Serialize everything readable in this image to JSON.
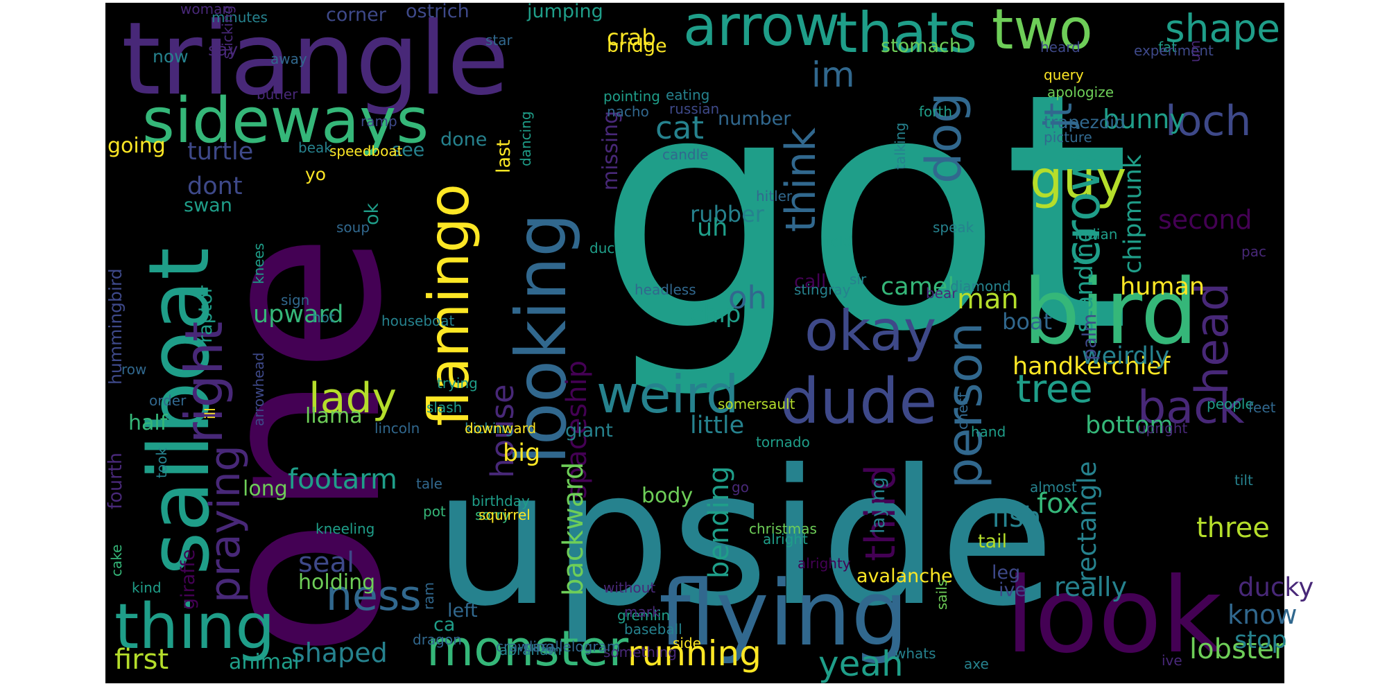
{
  "palette": [
    "#440154",
    "#482878",
    "#3e4989",
    "#31688e",
    "#26828e",
    "#1f9e89",
    "#35b779",
    "#6ece58",
    "#b5de2b",
    "#fde725"
  ],
  "words": [
    {
      "t": "got",
      "c": 5
    },
    {
      "t": "one",
      "c": 0
    },
    {
      "t": "upside",
      "c": 4
    },
    {
      "t": "triangle",
      "c": 1
    },
    {
      "t": "sailboat",
      "c": 5
    },
    {
      "t": "looking",
      "c": 3
    },
    {
      "t": "look",
      "c": 0
    },
    {
      "t": "bird",
      "c": 6
    },
    {
      "t": "flying",
      "c": 3
    },
    {
      "t": "dude",
      "c": 2
    },
    {
      "t": "sideways",
      "c": 6
    },
    {
      "t": "flamingo",
      "c": 9
    },
    {
      "t": "arrow",
      "c": 5
    },
    {
      "t": "thats",
      "c": 5
    },
    {
      "t": "two",
      "c": 7
    },
    {
      "t": "thing",
      "c": 5
    },
    {
      "t": "monster",
      "c": 6
    },
    {
      "t": "right",
      "c": 1
    },
    {
      "t": "okay",
      "c": 2
    },
    {
      "t": "weird",
      "c": 4
    },
    {
      "t": "guy",
      "c": 8
    },
    {
      "t": "ness",
      "c": 3
    },
    {
      "t": "lady",
      "c": 8
    },
    {
      "t": "praying",
      "c": 1
    },
    {
      "t": "person",
      "c": 3
    },
    {
      "t": "head",
      "c": 1
    },
    {
      "t": "shape",
      "c": 5
    },
    {
      "t": "crow",
      "c": 5
    },
    {
      "t": "loch",
      "c": 2
    },
    {
      "t": "dog",
      "c": 3
    },
    {
      "t": "back",
      "c": 1
    },
    {
      "t": "think",
      "c": 3
    },
    {
      "t": "third",
      "c": 0
    },
    {
      "t": "tree",
      "c": 5
    },
    {
      "t": "jt",
      "c": 3
    },
    {
      "t": "im",
      "c": 3
    },
    {
      "t": "running",
      "c": 9
    },
    {
      "t": "yeah",
      "c": 5
    },
    {
      "t": "footarm",
      "c": 5
    },
    {
      "t": "fish",
      "c": 4
    },
    {
      "t": "handkerchief",
      "c": 9
    },
    {
      "t": "three",
      "c": 8
    },
    {
      "t": "fox",
      "c": 6
    },
    {
      "t": "first",
      "c": 8
    },
    {
      "t": "bottom",
      "c": 6
    },
    {
      "t": "shaped",
      "c": 4
    },
    {
      "t": "seal",
      "c": 2
    },
    {
      "t": "house",
      "c": 1
    },
    {
      "t": "cat",
      "c": 4
    },
    {
      "t": "oh",
      "c": 3
    },
    {
      "t": "camel",
      "c": 6
    },
    {
      "t": "man",
      "c": 8
    },
    {
      "t": "human",
      "c": 9
    },
    {
      "t": "lobster",
      "c": 7
    },
    {
      "t": "ducky",
      "c": 1
    },
    {
      "t": "really",
      "c": 4
    },
    {
      "t": "bunny",
      "c": 5
    },
    {
      "t": "second",
      "c": 0
    },
    {
      "t": "chipmunk",
      "c": 5
    },
    {
      "t": "standing",
      "c": 5
    },
    {
      "t": "rectangle",
      "c": 4
    },
    {
      "t": "spaceship",
      "c": 0
    },
    {
      "t": "backward",
      "c": 7
    },
    {
      "t": "bending",
      "c": 5
    },
    {
      "t": "know",
      "c": 3
    },
    {
      "t": "stop",
      "c": 4
    },
    {
      "t": "upward",
      "c": 6
    },
    {
      "t": "dont",
      "c": 2
    },
    {
      "t": "turtle",
      "c": 2
    },
    {
      "t": "going",
      "c": 9
    },
    {
      "t": "missing",
      "c": 1
    },
    {
      "t": "rubber",
      "c": 4
    },
    {
      "t": "uh",
      "c": 5
    },
    {
      "t": "chip",
      "c": 5
    },
    {
      "t": "boat",
      "c": 3
    },
    {
      "t": "weirdly",
      "c": 4
    },
    {
      "t": "little",
      "c": 4
    },
    {
      "t": "big",
      "c": 9
    },
    {
      "t": "body",
      "c": 7
    },
    {
      "t": "avalanche",
      "c": 9
    },
    {
      "t": "llama",
      "c": 7
    },
    {
      "t": "holding",
      "c": 7
    },
    {
      "t": "animal",
      "c": 5
    },
    {
      "t": "long",
      "c": 7
    },
    {
      "t": "ok",
      "c": 5
    },
    {
      "t": "swan",
      "c": 5
    },
    {
      "t": "crab",
      "c": 9
    },
    {
      "t": "number",
      "c": 3
    },
    {
      "t": "corner",
      "c": 2
    },
    {
      "t": "jumping",
      "c": 5
    },
    {
      "t": "ostrich",
      "c": 2
    },
    {
      "t": "bridge",
      "c": 9
    },
    {
      "t": "stomach",
      "c": 7
    },
    {
      "t": "see",
      "c": 4
    },
    {
      "t": "done",
      "c": 4
    },
    {
      "t": "last",
      "c": 9
    },
    {
      "t": "call",
      "c": 0
    },
    {
      "t": "palm",
      "c": 2
    },
    {
      "t": "laying",
      "c": 4
    },
    {
      "t": "tail",
      "c": 8
    },
    {
      "t": "leg",
      "c": 2
    },
    {
      "t": "ive",
      "c": 2
    },
    {
      "t": "giant",
      "c": 4
    },
    {
      "t": "half",
      "c": 6
    },
    {
      "t": "giraffe",
      "c": 0
    },
    {
      "t": "fourth",
      "c": 1
    },
    {
      "t": "raptor",
      "c": 5
    },
    {
      "t": "hummingbird",
      "c": 2
    },
    {
      "t": "left",
      "c": 3
    },
    {
      "t": "ca",
      "c": 5
    },
    {
      "t": "trapezoid",
      "c": 3
    },
    {
      "t": "say",
      "c": 1
    },
    {
      "t": "now",
      "c": 4
    },
    {
      "t": "yo",
      "c": 9
    },
    {
      "t": "woman",
      "c": 1
    },
    {
      "t": "minutes",
      "c": 4
    },
    {
      "t": "sticking",
      "c": 1
    },
    {
      "t": "star",
      "c": 3
    },
    {
      "t": "away",
      "c": 3
    },
    {
      "t": "butler",
      "c": 1
    },
    {
      "t": "eating",
      "c": 4
    },
    {
      "t": "russian",
      "c": 2
    },
    {
      "t": "candle",
      "c": 3
    },
    {
      "t": "pointing",
      "c": 5
    },
    {
      "t": "nacho",
      "c": 3
    },
    {
      "t": "fat",
      "c": 5
    },
    {
      "t": "heard",
      "c": 2
    },
    {
      "t": "query",
      "c": 9
    },
    {
      "t": "experiment",
      "c": 2
    },
    {
      "t": "apologize",
      "c": 7
    },
    {
      "t": "picture",
      "c": 3
    },
    {
      "t": "um",
      "c": 1
    },
    {
      "t": "forth",
      "c": 5
    },
    {
      "t": "talking",
      "c": 4
    },
    {
      "t": "speak",
      "c": 4
    },
    {
      "t": "field",
      "c": 5
    },
    {
      "t": "hitler",
      "c": 3
    },
    {
      "t": "duck",
      "c": 5
    },
    {
      "t": "sir",
      "c": 4
    },
    {
      "t": "stingray",
      "c": 4
    },
    {
      "t": "bear",
      "c": 1
    },
    {
      "t": "diamond",
      "c": 4
    },
    {
      "t": "headless",
      "c": 3
    },
    {
      "t": "indian",
      "c": 5
    },
    {
      "t": "pac",
      "c": 1
    },
    {
      "t": "speedboat",
      "c": 9
    },
    {
      "t": "beak",
      "c": 4
    },
    {
      "t": "ramp",
      "c": 2
    },
    {
      "t": "soup",
      "c": 3
    },
    {
      "t": "dancing",
      "c": 5
    },
    {
      "t": "knees",
      "c": 5
    },
    {
      "t": "sign",
      "c": 3
    },
    {
      "t": "houseboat",
      "c": 4
    },
    {
      "t": "hot",
      "c": 4
    },
    {
      "t": "row",
      "c": 3
    },
    {
      "t": "lincoln",
      "c": 3
    },
    {
      "t": "slash",
      "c": 5
    },
    {
      "t": "order",
      "c": 3
    },
    {
      "t": "took",
      "c": 4
    },
    {
      "t": "trying",
      "c": 5
    },
    {
      "t": "kicking",
      "c": 4
    },
    {
      "t": "downward",
      "c": 9
    },
    {
      "t": "somersault",
      "c": 8
    },
    {
      "t": "tornado",
      "c": 5
    },
    {
      "t": "go",
      "c": 1
    },
    {
      "t": "upright",
      "c": 1
    },
    {
      "t": "hand",
      "c": 5
    },
    {
      "t": "people",
      "c": 5
    },
    {
      "t": "feet",
      "c": 3
    },
    {
      "t": "chest",
      "c": 3
    },
    {
      "t": "tilt",
      "c": 4
    },
    {
      "t": "almost",
      "c": 4
    },
    {
      "t": "christmas",
      "c": 7
    },
    {
      "t": "alright",
      "c": 5
    },
    {
      "t": "birthday",
      "c": 5
    },
    {
      "t": "sorry",
      "c": 6
    },
    {
      "t": "squirrel",
      "c": 9
    },
    {
      "t": "kneeling",
      "c": 5
    },
    {
      "t": "ill",
      "c": 9
    },
    {
      "t": "arrowhead",
      "c": 2
    },
    {
      "t": "cake",
      "c": 6
    },
    {
      "t": "kind",
      "c": 5
    },
    {
      "t": "tale",
      "c": 3
    },
    {
      "t": "without",
      "c": 1
    },
    {
      "t": "alrighty",
      "c": 0
    },
    {
      "t": "dragon",
      "c": 3
    },
    {
      "t": "ram",
      "c": 3
    },
    {
      "t": "gremlin",
      "c": 5
    },
    {
      "t": "mark",
      "c": 1
    },
    {
      "t": "pot",
      "c": 6
    },
    {
      "t": "crawling",
      "c": 3
    },
    {
      "t": "baseball",
      "c": 4
    },
    {
      "t": "side",
      "c": 9
    },
    {
      "t": "something",
      "c": 1
    },
    {
      "t": "abraham",
      "c": 4
    },
    {
      "t": "parallelogram",
      "c": 3
    },
    {
      "t": "sails",
      "c": 7
    },
    {
      "t": "whats",
      "c": 4
    },
    {
      "t": "axe",
      "c": 4
    },
    {
      "t": "ive",
      "c": 1
    }
  ]
}
